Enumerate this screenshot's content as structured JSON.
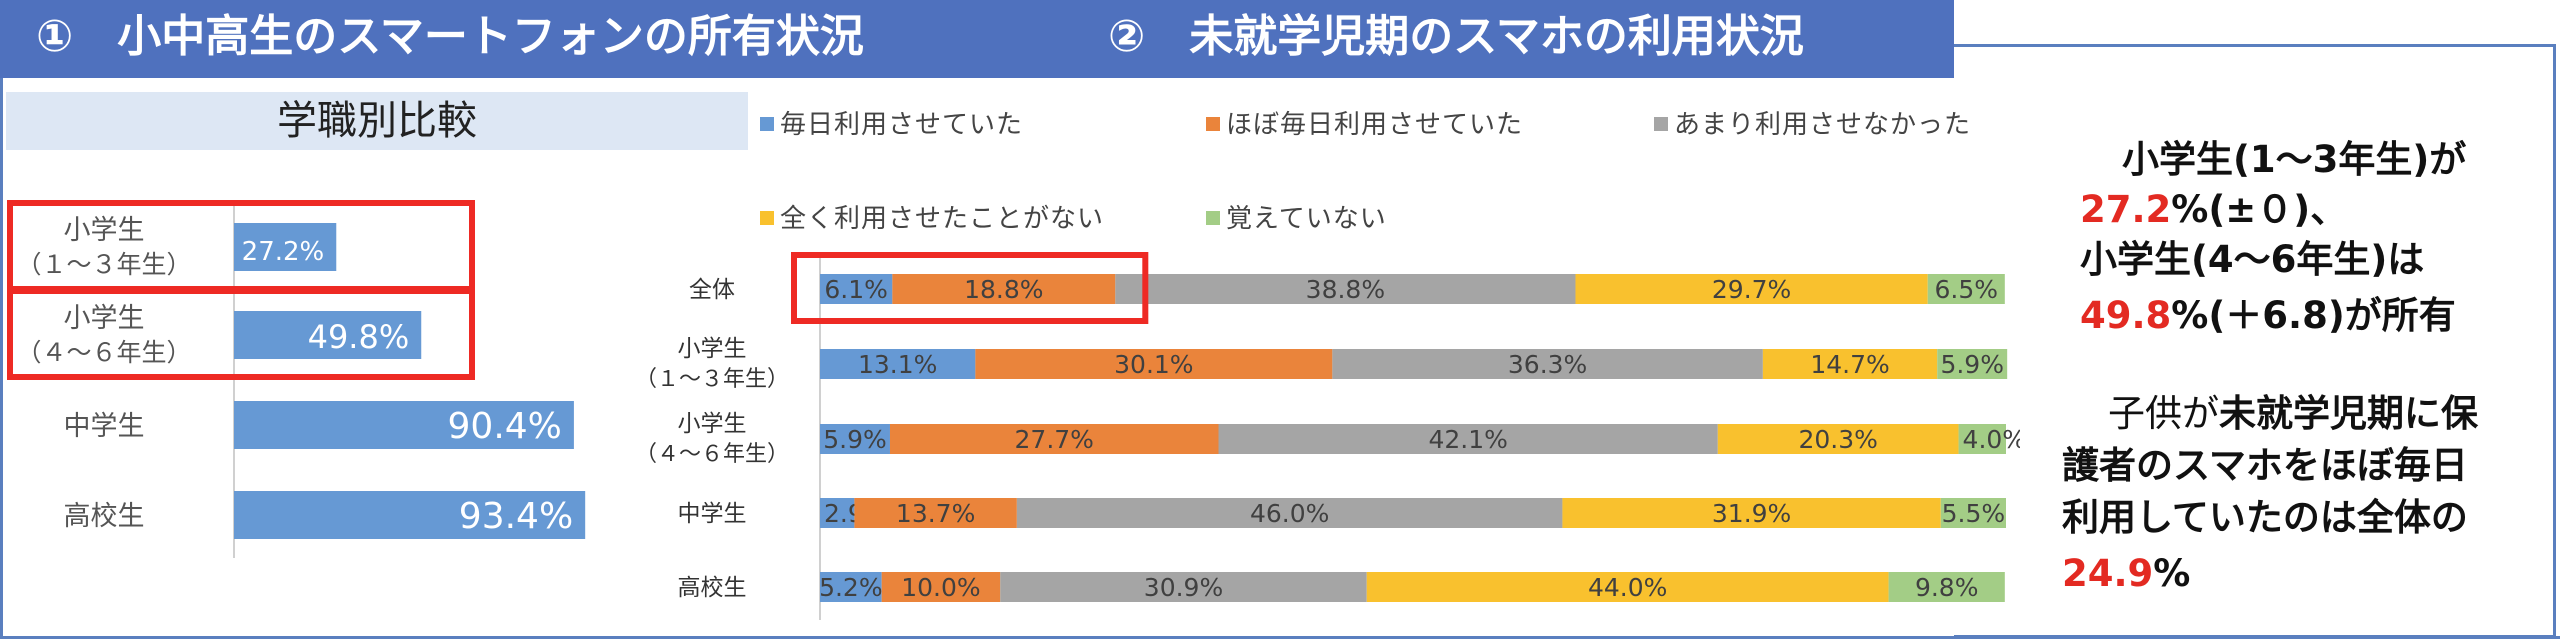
{
  "header": {
    "title_left": "①　小中高生のスマートフォンの所有状況",
    "title_right": "②　未就学児期のスマホの利用状況"
  },
  "colors": {
    "header_bg": "#4f71be",
    "blue": "#6699d4",
    "orange": "#ea843b",
    "gray": "#a5a5a5",
    "yellow": "#f9c12e",
    "green": "#a3cd86",
    "highlight": "#ee2a24",
    "emphasis_red": "#e32a22"
  },
  "chart_data": [
    {
      "type": "bar",
      "orientation": "horizontal",
      "title": "学職別比較",
      "categories": [
        [
          "小学生",
          "（１～３年生）"
        ],
        [
          "小学生",
          "（４～６年生）"
        ],
        [
          "中学生"
        ],
        [
          "高校生"
        ]
      ],
      "values": [
        27.2,
        49.8,
        90.4,
        93.4
      ],
      "value_labels": [
        "27.2%",
        "49.8%",
        "90.4%",
        "93.4%"
      ],
      "xlim": [
        0,
        100
      ],
      "highlighted": [
        0,
        1
      ]
    },
    {
      "type": "bar",
      "orientation": "horizontal",
      "stacked": true,
      "legend_position": "top",
      "categories": [
        [
          "全体"
        ],
        [
          "小学生",
          "（１～３年生）"
        ],
        [
          "小学生",
          "（４～６年生）"
        ],
        [
          "中学生"
        ],
        [
          "高校生"
        ]
      ],
      "series": [
        {
          "name": "毎日利用させていた",
          "values": [
            6.1,
            13.1,
            5.9,
            2.9,
            5.2
          ]
        },
        {
          "name": "ほぼ毎日利用させていた",
          "values": [
            18.8,
            30.1,
            27.7,
            13.7,
            10.0
          ]
        },
        {
          "name": "あまり利用させなかった",
          "values": [
            38.8,
            36.3,
            42.1,
            46.0,
            30.9
          ]
        },
        {
          "name": "全く利用させたことがない",
          "values": [
            29.7,
            14.7,
            20.3,
            31.9,
            44.0
          ]
        },
        {
          "name": "覚えていない",
          "values": [
            6.5,
            5.9,
            4.0,
            5.5,
            9.8
          ]
        }
      ],
      "labels": [
        [
          "6.1%",
          "18.8%",
          "38.8%",
          "29.7%",
          "6.5%"
        ],
        [
          "13.1%",
          "30.1%",
          "36.3%",
          "14.7%",
          "5.9%"
        ],
        [
          "5.9%",
          "27.7%",
          "42.1%",
          "20.3%",
          "4.0%"
        ],
        [
          "2.9%",
          "13.7%",
          "46.0%",
          "31.9%",
          "5.5%"
        ],
        [
          "5.2%",
          "10.0%",
          "30.9%",
          "44.0%",
          "9.8%"
        ]
      ],
      "xlim": [
        0,
        100
      ],
      "highlighted": {
        "category": 0,
        "series": [
          0,
          1
        ]
      }
    }
  ],
  "notes": {
    "line1": "小学生(1～3年生)が",
    "line2_red": "27.2",
    "line2_rest": "%(±０)、",
    "line3": "小学生(4～6年生)は",
    "line4_red": "49.8",
    "line4_rest": "%(＋6.8)が所有",
    "p2_plain": "子供が",
    "p2_bold": "未就学児期に保",
    "p2_line2": "護者のスマホをほぼ毎日",
    "p2_line3": "利用していたのは全体の",
    "p2_red": "24.9",
    "p2_pct": "%"
  }
}
